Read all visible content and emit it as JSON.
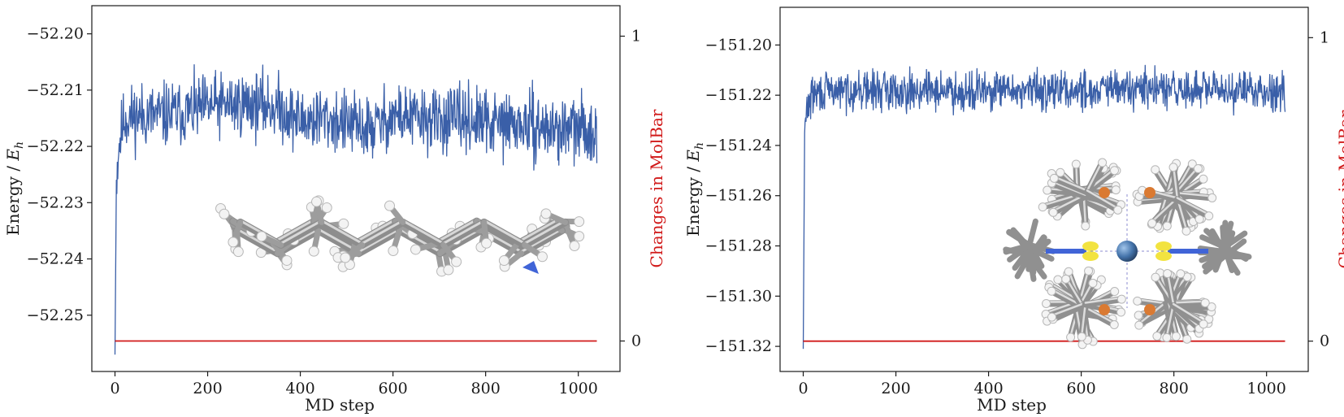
{
  "chart_data": [
    {
      "type": "line",
      "title": "",
      "xlabel": "MD step",
      "ylabel": "Energy / E_h",
      "ylabel_main": "Energy / ",
      "ylabel_symbol": "E",
      "ylabel_sub": "h",
      "y2label": "Changes in MolBar",
      "xlim": [
        -50,
        1090
      ],
      "ylim": [
        -52.26,
        -52.195
      ],
      "y2lim": [
        -0.1,
        1.1
      ],
      "xticks": [
        0,
        200,
        400,
        600,
        800,
        1000
      ],
      "xtick_labels": [
        "0",
        "200",
        "400",
        "600",
        "800",
        "1000"
      ],
      "yticks": [
        -52.25,
        -52.24,
        -52.23,
        -52.22,
        -52.21,
        -52.2
      ],
      "ytick_labels": [
        "−52.25",
        "−52.24",
        "−52.23",
        "−52.22",
        "−52.21",
        "−52.20"
      ],
      "y2ticks": [
        0,
        1
      ],
      "y2tick_labels": [
        "0",
        "1"
      ],
      "grid": false,
      "series": [
        {
          "color": "#3a5fa8",
          "axis": "left",
          "noise_seed": 11,
          "x": [
            0,
            3,
            8,
            20,
            50,
            100,
            150,
            200,
            250,
            300,
            350,
            400,
            450,
            500,
            550,
            600,
            650,
            700,
            750,
            800,
            850,
            900,
            950,
            1000,
            1040
          ],
          "y": [
            -52.257,
            -52.226,
            -52.22,
            -52.215,
            -52.2145,
            -52.2145,
            -52.214,
            -52.213,
            -52.2125,
            -52.2125,
            -52.213,
            -52.2155,
            -52.215,
            -52.216,
            -52.217,
            -52.2145,
            -52.215,
            -52.2155,
            -52.215,
            -52.216,
            -52.216,
            -52.2165,
            -52.217,
            -52.217,
            -52.217
          ],
          "noise_amplitude": 0.0085
        },
        {
          "color": "#d11a1a",
          "axis": "right",
          "x": [
            0,
            1040
          ],
          "y": [
            0,
            0
          ]
        }
      ]
    },
    {
      "type": "line",
      "title": "",
      "xlabel": "MD step",
      "ylabel": "Energy / E_h",
      "ylabel_main": "Energy / ",
      "ylabel_symbol": "E",
      "ylabel_sub": "h",
      "y2label": "Changes in MolBar",
      "xlim": [
        -50,
        1090
      ],
      "ylim": [
        -151.33,
        -151.185
      ],
      "y2lim": [
        -0.1,
        1.1
      ],
      "xticks": [
        0,
        200,
        400,
        600,
        800,
        1000
      ],
      "xtick_labels": [
        "0",
        "200",
        "400",
        "600",
        "800",
        "1000"
      ],
      "yticks": [
        -151.32,
        -151.3,
        -151.28,
        -151.26,
        -151.24,
        -151.22,
        -151.2
      ],
      "ytick_labels": [
        "−151.32",
        "−151.30",
        "−151.28",
        "−151.26",
        "−151.24",
        "−151.22",
        "−151.20"
      ],
      "y2ticks": [
        0,
        1
      ],
      "y2tick_labels": [
        "0",
        "1"
      ],
      "grid": false,
      "series": [
        {
          "color": "#3a5fa8",
          "axis": "left",
          "noise_seed": 29,
          "x": [
            0,
            3,
            8,
            20,
            50,
            100,
            200,
            300,
            400,
            500,
            600,
            700,
            800,
            900,
            1000,
            1040
          ],
          "y": [
            -151.321,
            -151.235,
            -151.225,
            -151.22,
            -151.2185,
            -151.218,
            -151.218,
            -151.218,
            -151.2185,
            -151.218,
            -151.218,
            -151.2175,
            -151.218,
            -151.218,
            -151.218,
            -151.218
          ],
          "noise_amplitude": 0.0115
        },
        {
          "color": "#d11a1a",
          "axis": "right",
          "x": [
            0,
            1040
          ],
          "y": [
            0,
            0
          ]
        }
      ]
    }
  ]
}
